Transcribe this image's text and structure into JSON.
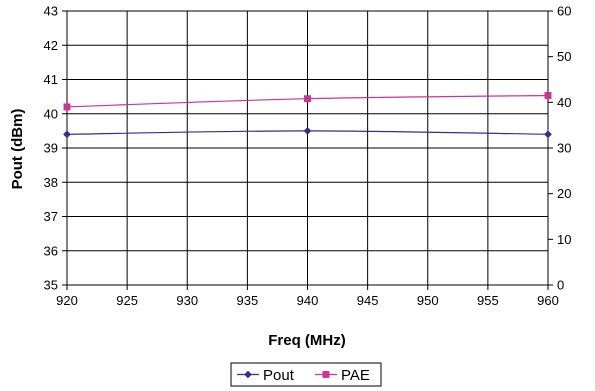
{
  "chart_data": {
    "type": "line",
    "title": "",
    "xlabel": "Freq (MHz)",
    "ylabel": "Pout (dBm)",
    "y2label": "",
    "x": [
      920,
      940,
      960
    ],
    "xlim": [
      920,
      960
    ],
    "xticks": [
      920,
      925,
      930,
      935,
      940,
      945,
      950,
      955,
      960
    ],
    "ylim": [
      35,
      43
    ],
    "yticks": [
      35,
      36,
      37,
      38,
      39,
      40,
      41,
      42,
      43
    ],
    "y2lim": [
      0,
      60
    ],
    "y2ticks": [
      0,
      10,
      20,
      30,
      40,
      50,
      60
    ],
    "grid": true,
    "legend_position": "bottom",
    "series": [
      {
        "name": "Pout",
        "axis": "left",
        "values": [
          39.4,
          39.5,
          39.4
        ],
        "color": "#2E3192",
        "marker": "diamond"
      },
      {
        "name": "PAE",
        "axis": "right",
        "values": [
          39.0,
          40.8,
          41.5
        ],
        "color": "#CC3399",
        "marker": "square"
      }
    ]
  }
}
